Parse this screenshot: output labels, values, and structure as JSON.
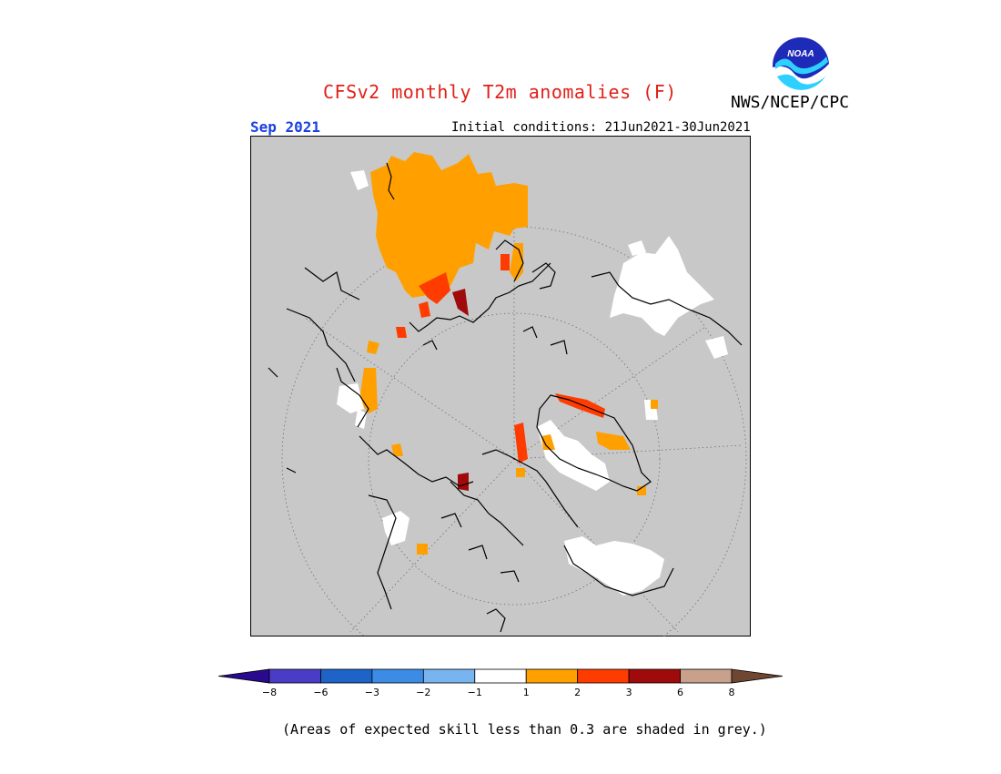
{
  "header": {
    "title": "CFSv2 monthly T2m anomalies (F)",
    "agency": "NWS/NCEP/CPC",
    "logo_text": "NOAA",
    "month": "Sep 2021",
    "initial_conditions": "Initial conditions: 21Jun2021-30Jun2021"
  },
  "colors": {
    "title": "#e0201a",
    "month": "#1a3fe0",
    "map_background": "#c8c8c8",
    "land_outline": "#000000",
    "grid": "#808080"
  },
  "legend": {
    "tick_labels": [
      "−8",
      "−6",
      "−3",
      "−2",
      "−1",
      "1",
      "2",
      "3",
      "6",
      "8"
    ],
    "bins": [
      {
        "color": "#2a0a8c"
      },
      {
        "color": "#4b3cc8"
      },
      {
        "color": "#1e64c8"
      },
      {
        "color": "#3c8ce6"
      },
      {
        "color": "#78b4f0"
      },
      {
        "color": "#ffffff"
      },
      {
        "color": "#ffa000"
      },
      {
        "color": "#ff3c00"
      },
      {
        "color": "#a00a0a"
      },
      {
        "color": "#c8a08c"
      },
      {
        "color": "#6e4632"
      }
    ]
  },
  "footnote": "(Areas of expected skill less than 0.3 are shaded in grey.)"
}
